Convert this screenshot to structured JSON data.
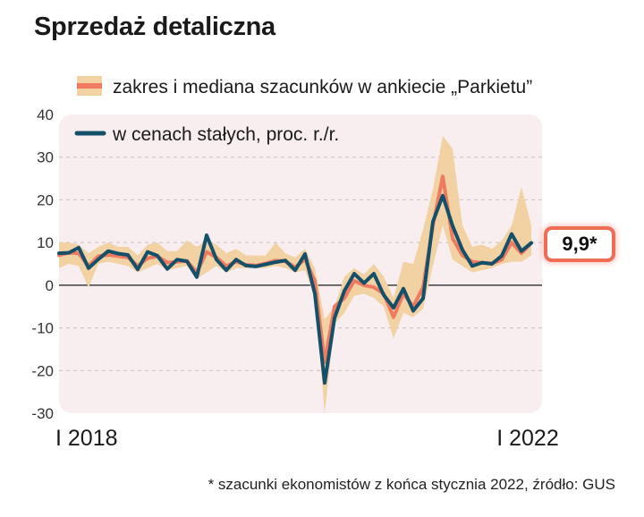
{
  "title": "Sprzedaż detaliczna",
  "footnote": "* szacunki ekonomistów z końca stycznia 2022, źródło: GUS",
  "callout": "9,9*",
  "colors": {
    "band": "#f2d2a3",
    "median": "#ef7a5f",
    "line": "#14506a",
    "plot_bg": "#f8eef0",
    "callout_border": "#ef6c55"
  },
  "chart_data": {
    "type": "line",
    "title": "Sprzedaż detaliczna",
    "xlabel": "",
    "ylabel": "",
    "ylim": [
      -30,
      40
    ],
    "yticks": [
      40,
      30,
      20,
      10,
      0,
      -10,
      -20,
      -30
    ],
    "x_tick_labels": [
      {
        "index": 0,
        "label": "I 2018"
      },
      {
        "index": 48,
        "label": "I 2022"
      }
    ],
    "legend": [
      "zakres i mediana szacunków w ankiecie „Parkietu”",
      "w cenach stałych, proc. r./r."
    ],
    "callout_label": "9,9*",
    "series": [
      {
        "name": "w cenach stałych, proc. r./r.",
        "values": [
          7.5,
          7.6,
          8.8,
          4.0,
          6.1,
          8.0,
          7.4,
          7.1,
          3.7,
          7.8,
          6.9,
          3.8,
          6.0,
          5.6,
          1.9,
          11.7,
          6.0,
          3.5,
          6.0,
          4.6,
          4.4,
          4.9,
          5.4,
          5.8,
          3.5,
          7.3,
          -2.0,
          -22.9,
          -7.7,
          -1.3,
          2.7,
          0.5,
          2.7,
          -2.3,
          -5.3,
          -0.8,
          -6.0,
          -3.1,
          14.9,
          21.0,
          13.9,
          8.3,
          4.5,
          5.3,
          5.0,
          6.9,
          12.0,
          8.0,
          9.9
        ]
      },
      {
        "name": "mediana szacunków",
        "values": [
          7.0,
          7.6,
          7.5,
          4.5,
          6.8,
          7.1,
          6.8,
          6.5,
          4.5,
          6.3,
          6.8,
          5.3,
          5.5,
          5.7,
          3.0,
          7.8,
          6.5,
          4.5,
          5.5,
          4.8,
          4.6,
          5.1,
          5.8,
          5.6,
          4.2,
          6.1,
          1.0,
          -18.0,
          -5.0,
          -3.0,
          1.0,
          0.0,
          -0.5,
          -2.0,
          -7.5,
          -2.0,
          -5.0,
          -0.5,
          14.0,
          25.5,
          11.0,
          7.0,
          5.5,
          5.2,
          5.1,
          6.0,
          10.0,
          7.5,
          9.9
        ]
      }
    ],
    "range": {
      "name": "zakres szacunków",
      "low": [
        4.0,
        5.0,
        4.5,
        -0.5,
        5.0,
        5.5,
        5.0,
        4.5,
        3.0,
        4.0,
        5.0,
        3.5,
        4.0,
        4.5,
        1.5,
        3.0,
        4.5,
        3.0,
        4.0,
        4.0,
        4.0,
        4.0,
        4.5,
        4.0,
        3.0,
        3.5,
        -3.0,
        -30.0,
        -9.0,
        -6.5,
        -2.5,
        -2.0,
        -3.0,
        -5.0,
        -12.5,
        -6.5,
        -7.5,
        -5.5,
        4.5,
        14.0,
        6.0,
        4.5,
        3.0,
        3.5,
        4.0,
        5.0,
        5.5,
        5.5,
        7.0
      ],
      "high": [
        10.0,
        10.0,
        9.5,
        7.5,
        9.0,
        10.0,
        9.0,
        9.0,
        7.0,
        9.5,
        10.0,
        8.0,
        8.0,
        10.5,
        9.0,
        10.5,
        9.5,
        7.5,
        8.5,
        7.0,
        7.0,
        7.0,
        10.0,
        7.5,
        6.5,
        8.5,
        4.0,
        -8.0,
        -5.0,
        2.0,
        4.0,
        2.5,
        5.0,
        2.0,
        -3.0,
        5.5,
        5.0,
        13.0,
        22.5,
        35.0,
        32.0,
        14.0,
        9.0,
        9.5,
        8.5,
        10.5,
        14.0,
        23.0,
        14.0
      ]
    }
  }
}
